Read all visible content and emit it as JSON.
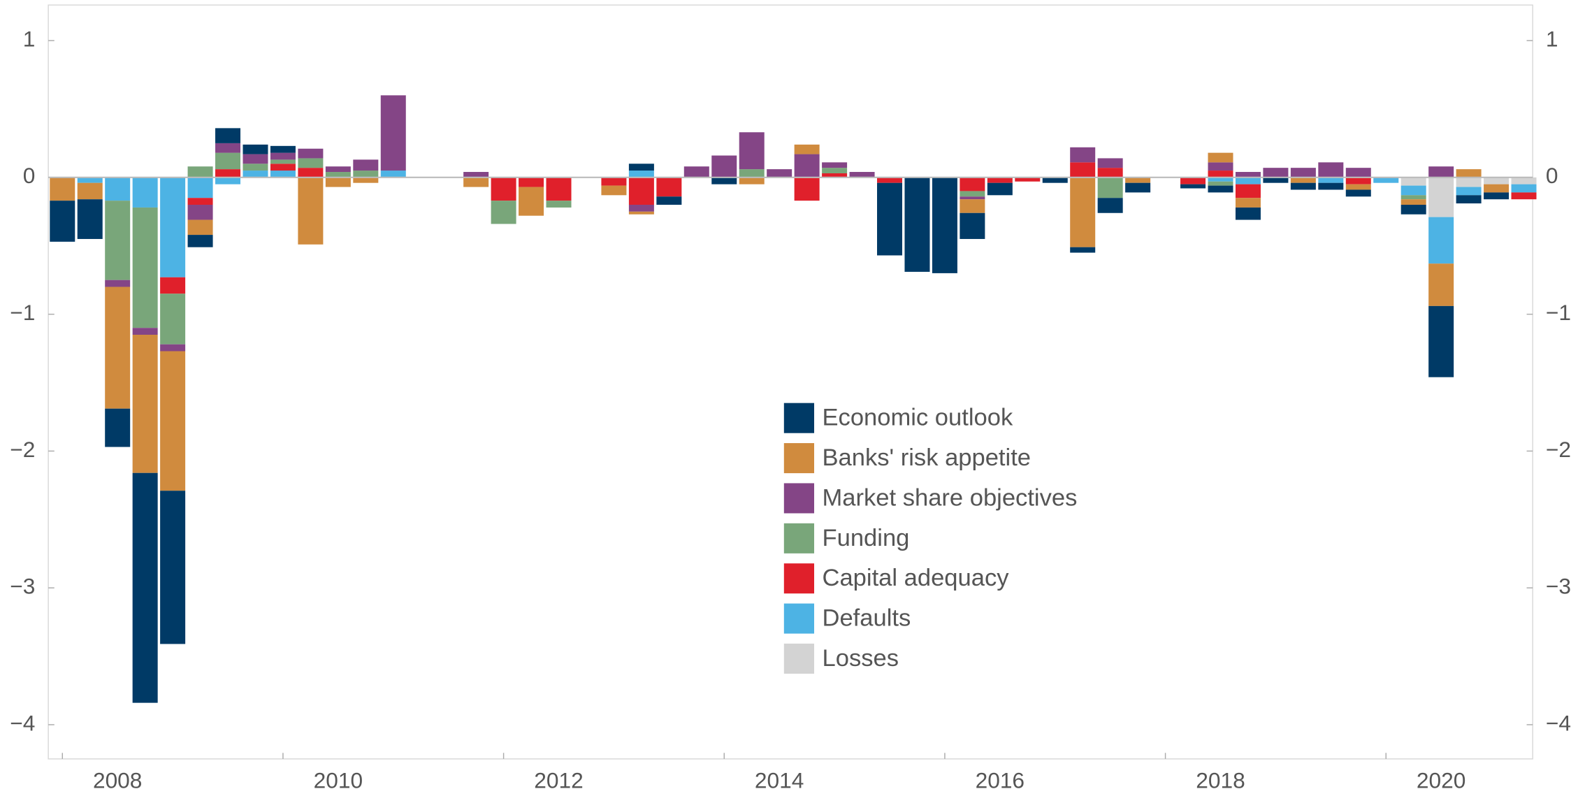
{
  "chart_data": {
    "type": "stacked_bar",
    "categories": [
      null,
      null,
      "2008",
      null,
      null,
      null,
      null,
      null,
      null,
      null,
      "2010",
      null,
      null,
      null,
      null,
      null,
      null,
      null,
      "2012",
      null,
      null,
      null,
      null,
      null,
      null,
      null,
      "2014",
      null,
      null,
      null,
      null,
      null,
      null,
      null,
      "2016",
      null,
      null,
      null,
      null,
      null,
      null,
      null,
      "2018",
      null,
      null,
      null,
      null,
      null,
      null,
      null,
      "2020",
      null,
      null,
      null
    ],
    "series": [
      {
        "name": "Economic outlook",
        "color": "#003a66",
        "values": [
          -0.3,
          -0.29,
          -0.28,
          -1.68,
          -1.12,
          -0.09,
          0.11,
          0.07,
          0.05,
          0,
          0,
          0,
          0,
          0,
          0,
          0,
          0,
          0,
          0,
          0,
          0,
          0.05,
          -0.06,
          0,
          -0.05,
          0,
          0,
          0,
          0,
          0,
          -0.53,
          -0.69,
          -0.7,
          -0.19,
          -0.09,
          0,
          -0.04,
          -0.04,
          -0.11,
          -0.07,
          0,
          -0.03,
          -0.05,
          -0.09,
          -0.04,
          -0.05,
          -0.05,
          -0.05,
          0,
          -0.07,
          -0.52,
          -0.06,
          -0.05,
          0
        ]
      },
      {
        "name": "Banks' risk appetite",
        "color": "#d08b3e",
        "values": [
          -0.17,
          -0.12,
          -0.89,
          -1.01,
          -1.02,
          -0.11,
          0,
          0,
          0,
          -0.49,
          -0.07,
          -0.04,
          0,
          0,
          0,
          -0.07,
          0,
          -0.21,
          0,
          0,
          -0.07,
          -0.02,
          0,
          0,
          0,
          -0.05,
          0,
          0.07,
          0,
          0,
          0,
          0,
          0,
          -0.1,
          0,
          0,
          0,
          -0.51,
          0,
          -0.04,
          0,
          0,
          0.07,
          -0.07,
          0,
          -0.04,
          0,
          -0.04,
          0,
          -0.04,
          -0.31,
          0.06,
          -0.06,
          0
        ]
      },
      {
        "name": "Market share objectives",
        "color": "#844586",
        "values": [
          0,
          0,
          -0.05,
          -0.05,
          -0.05,
          -0.11,
          0.07,
          0.07,
          0.05,
          0.07,
          0.04,
          0.08,
          0.55,
          0,
          0,
          0.04,
          0,
          0,
          0,
          0,
          0,
          -0.05,
          0,
          0.08,
          0.16,
          0.27,
          0.06,
          0.17,
          0.04,
          0.04,
          0,
          0,
          0,
          -0.02,
          0,
          0,
          0,
          0.11,
          0.07,
          0,
          0,
          0,
          0.06,
          0.04,
          0.07,
          0.07,
          0.11,
          0.07,
          0,
          0,
          0.08,
          0,
          0,
          0
        ]
      },
      {
        "name": "Funding",
        "color": "#79a67a",
        "values": [
          0,
          0,
          -0.58,
          -0.88,
          -0.37,
          0.08,
          0.12,
          0.05,
          0.03,
          0.07,
          0.04,
          0.05,
          0,
          0,
          0,
          0,
          -0.17,
          0,
          -0.05,
          0,
          0,
          0,
          0,
          0,
          0,
          0.06,
          0,
          0,
          0.04,
          0,
          0,
          0,
          0,
          -0.04,
          0,
          0,
          0,
          0,
          -0.15,
          0,
          0,
          0,
          -0.03,
          0,
          0,
          0,
          0,
          0,
          0,
          -0.03,
          0,
          0,
          0,
          0
        ]
      },
      {
        "name": "Capital adequacy",
        "color": "#e0202b",
        "values": [
          0,
          0,
          0,
          0,
          -0.12,
          -0.05,
          0.06,
          0,
          0.05,
          0.07,
          0,
          0,
          0,
          0,
          0,
          0,
          -0.17,
          -0.07,
          -0.17,
          0,
          -0.06,
          -0.2,
          -0.14,
          0,
          0,
          0,
          0,
          -0.17,
          0.03,
          0,
          -0.04,
          0,
          0,
          -0.1,
          -0.04,
          -0.03,
          0,
          0.11,
          0.07,
          0,
          0,
          -0.05,
          0.05,
          -0.1,
          0,
          0,
          0,
          -0.05,
          0,
          0,
          0,
          0,
          0,
          -0.05
        ]
      },
      {
        "name": "Defaults",
        "color": "#4db3e4",
        "values": [
          0,
          -0.04,
          -0.17,
          -0.22,
          -0.73,
          -0.15,
          -0.05,
          0.05,
          0.05,
          0,
          0,
          0,
          0.05,
          0,
          0,
          0,
          0,
          0,
          0,
          0,
          0,
          0.05,
          0,
          0,
          0,
          0,
          0,
          0,
          0,
          0,
          0,
          0,
          0,
          0,
          0,
          0,
          0,
          0,
          0,
          0,
          0,
          0,
          -0.03,
          -0.05,
          0,
          0,
          -0.04,
          0,
          -0.04,
          -0.07,
          -0.34,
          -0.06,
          0,
          -0.06
        ]
      },
      {
        "name": "Losses",
        "color": "#d3d3d3",
        "values": [
          0,
          0,
          0,
          0,
          0,
          0,
          0,
          0,
          0,
          0,
          0,
          0,
          0,
          0,
          0,
          0,
          0,
          0,
          0,
          0,
          0,
          0,
          0,
          0,
          0,
          0,
          0,
          0,
          0,
          0,
          0,
          0,
          0,
          0,
          0,
          0,
          0,
          0,
          0,
          0,
          0,
          0,
          0,
          0,
          0,
          0,
          0,
          0,
          0,
          -0.06,
          -0.29,
          -0.07,
          -0.05,
          -0.05
        ]
      }
    ],
    "ylim": [
      -4.25,
      1.26
    ],
    "yticks": [
      {
        "value": -4,
        "label": "−4"
      },
      {
        "value": -3,
        "label": "−3"
      },
      {
        "value": -2,
        "label": "−2"
      },
      {
        "value": -1,
        "label": "−1"
      },
      0,
      1
    ]
  }
}
